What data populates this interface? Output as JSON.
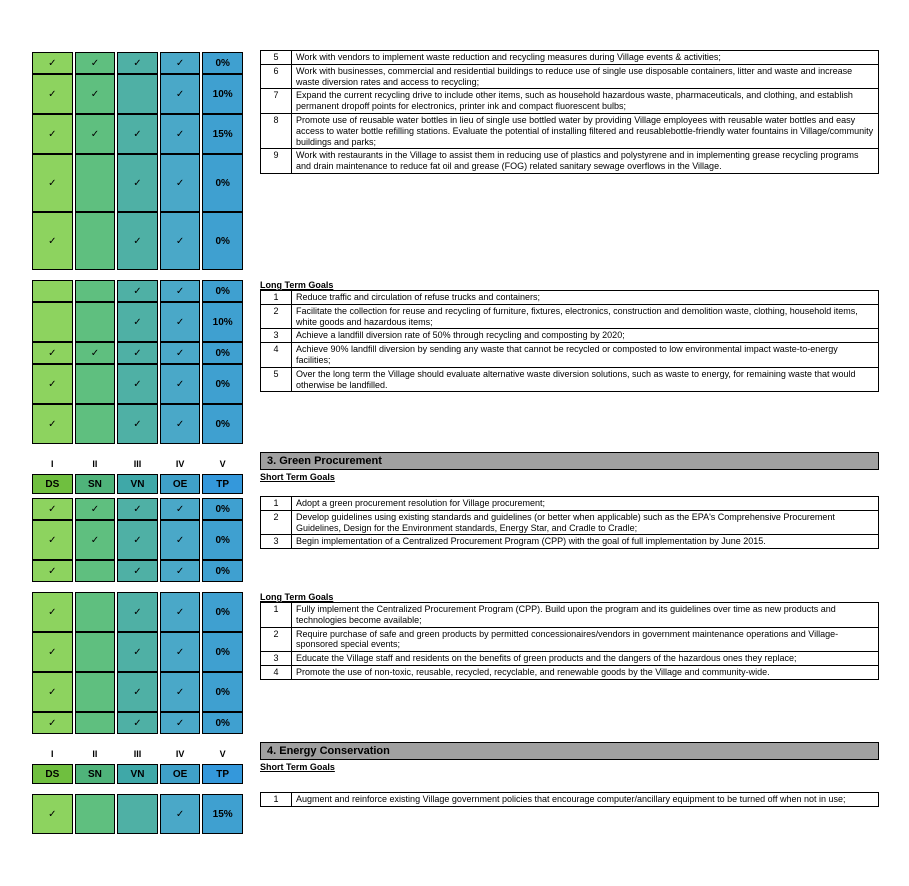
{
  "romans": [
    "I",
    "II",
    "III",
    "IV",
    "V"
  ],
  "cats": [
    "DS",
    "SN",
    "VN",
    "OE",
    "TP"
  ],
  "block1": {
    "rows": [
      {
        "c": [
          "✓",
          "✓",
          "✓",
          "✓",
          "0%"
        ],
        "ht": 1
      },
      {
        "c": [
          "✓",
          "✓",
          "",
          "✓",
          "10%"
        ],
        "ht": 2
      },
      {
        "c": [
          "✓",
          "✓",
          "✓",
          "✓",
          "15%"
        ],
        "ht": 2
      },
      {
        "c": [
          "✓",
          "",
          "✓",
          "✓",
          "0%"
        ],
        "ht": 3
      },
      {
        "c": [
          "✓",
          "",
          "✓",
          "✓",
          "0%"
        ],
        "ht": 3
      }
    ],
    "goals": [
      {
        "n": "5",
        "t": "Work with vendors to implement waste reduction and recycling measures during Village events & activities;"
      },
      {
        "n": "6",
        "t": "Work with businesses, commercial and residential buildings to reduce use of single use disposable containers, litter and waste and increase waste diversion rates and access to recycling;"
      },
      {
        "n": "7",
        "t": "Expand the current recycling drive to include other items, such as household hazardous waste, pharmaceuticals, and clothing, and establish permanent dropoff points for electronics, printer ink and compact fluorescent bulbs;"
      },
      {
        "n": "8",
        "t": "Promote use of reusable water bottles in lieu of single use bottled water by providing Village employees with reusable water bottles and easy access to water bottle refilling stations. Evaluate the potential of installing filtered and reusablebottle-friendly water fountains in Village/community buildings and parks;"
      },
      {
        "n": "9",
        "t": "Work with restaurants in the Village to assist them in reducing use of plastics and polystyrene and in implementing grease recycling programs and drain maintenance to reduce fat oil and grease (FOG) related sanitary sewage overflows in the Village."
      }
    ]
  },
  "block1lt": {
    "rows": [
      {
        "c": [
          "",
          "",
          "✓",
          "✓",
          "0%"
        ],
        "ht": 1
      },
      {
        "c": [
          "",
          "",
          "✓",
          "✓",
          "10%"
        ],
        "ht": 2
      },
      {
        "c": [
          "✓",
          "✓",
          "✓",
          "✓",
          "0%"
        ],
        "ht": 1
      },
      {
        "c": [
          "✓",
          "",
          "✓",
          "✓",
          "0%"
        ],
        "ht": 2
      },
      {
        "c": [
          "✓",
          "",
          "✓",
          "✓",
          "0%"
        ],
        "ht": 2
      }
    ],
    "subheader": "Long Term Goals",
    "goals": [
      {
        "n": "1",
        "t": "Reduce traffic and circulation of refuse trucks and containers;"
      },
      {
        "n": "2",
        "t": "Facilitate the collection for reuse and recycling of furniture, fixtures, electronics, construction and demolition waste, clothing, household items, white goods and hazardous items;"
      },
      {
        "n": "3",
        "t": "Achieve a landfill diversion rate of 50% through recycling and composting by 2020;"
      },
      {
        "n": "4",
        "t": "Achieve 90% landfill diversion by sending any waste that cannot be recycled or composted to low environmental impact waste-to-energy facilities;"
      },
      {
        "n": "5",
        "t": "Over the long term the Village should evaluate alternative waste diversion solutions, such as waste to energy, for remaining waste that would otherwise be landfilled."
      }
    ]
  },
  "block3": {
    "title": "3. Green Procurement",
    "stSub": "Short Term Goals",
    "ltSub": "Long Term Goals",
    "stRows": [
      {
        "c": [
          "✓",
          "✓",
          "✓",
          "✓",
          "0%"
        ],
        "ht": 1
      },
      {
        "c": [
          "✓",
          "✓",
          "✓",
          "✓",
          "0%"
        ],
        "ht": 2
      },
      {
        "c": [
          "✓",
          "",
          "✓",
          "✓",
          "0%"
        ],
        "ht": 1
      }
    ],
    "stGoals": [
      {
        "n": "1",
        "t": "Adopt a green procurement resolution for Village procurement;"
      },
      {
        "n": "2",
        "t": "Develop guidelines using existing standards and guidelines (or better when applicable) such as the EPA's Comprehensive Procurement Guidelines, Design for the Environment standards, Energy Star, and Cradle to Cradle;"
      },
      {
        "n": "3",
        "t": "Begin implementation of a Centralized Procurement Program (CPP) with the goal of full implementation by June 2015."
      }
    ],
    "ltRows": [
      {
        "c": [
          "✓",
          "",
          "✓",
          "✓",
          "0%"
        ],
        "ht": 2
      },
      {
        "c": [
          "✓",
          "",
          "✓",
          "✓",
          "0%"
        ],
        "ht": 2
      },
      {
        "c": [
          "✓",
          "",
          "✓",
          "✓",
          "0%"
        ],
        "ht": 2
      },
      {
        "c": [
          "✓",
          "",
          "✓",
          "✓",
          "0%"
        ],
        "ht": 1
      }
    ],
    "ltGoals": [
      {
        "n": "1",
        "t": "Fully implement the Centralized Procurement Program (CPP). Build upon the program and its guidelines over time as new products and technologies become available;"
      },
      {
        "n": "2",
        "t": "Require purchase of safe and green products by permitted concessionaires/vendors in government maintenance operations and Village-sponsored special events;"
      },
      {
        "n": "3",
        "t": "Educate the Village staff and residents on the benefits of green products and the dangers of the hazardous ones they replace;"
      },
      {
        "n": "4",
        "t": "Promote the use of non-toxic, reusable, recycled, recyclable, and renewable goods by the Village and community-wide."
      }
    ]
  },
  "block4": {
    "title": "4. Energy Conservation",
    "stSub": "Short Term Goals",
    "stRows": [
      {
        "c": [
          "✓",
          "",
          "",
          "✓",
          "15%"
        ],
        "ht": 2
      }
    ],
    "stGoals": [
      {
        "n": "1",
        "t": "Augment and reinforce existing Village government policies that encourage computer/ancillary equipment to be turned off when not in use;"
      }
    ]
  }
}
